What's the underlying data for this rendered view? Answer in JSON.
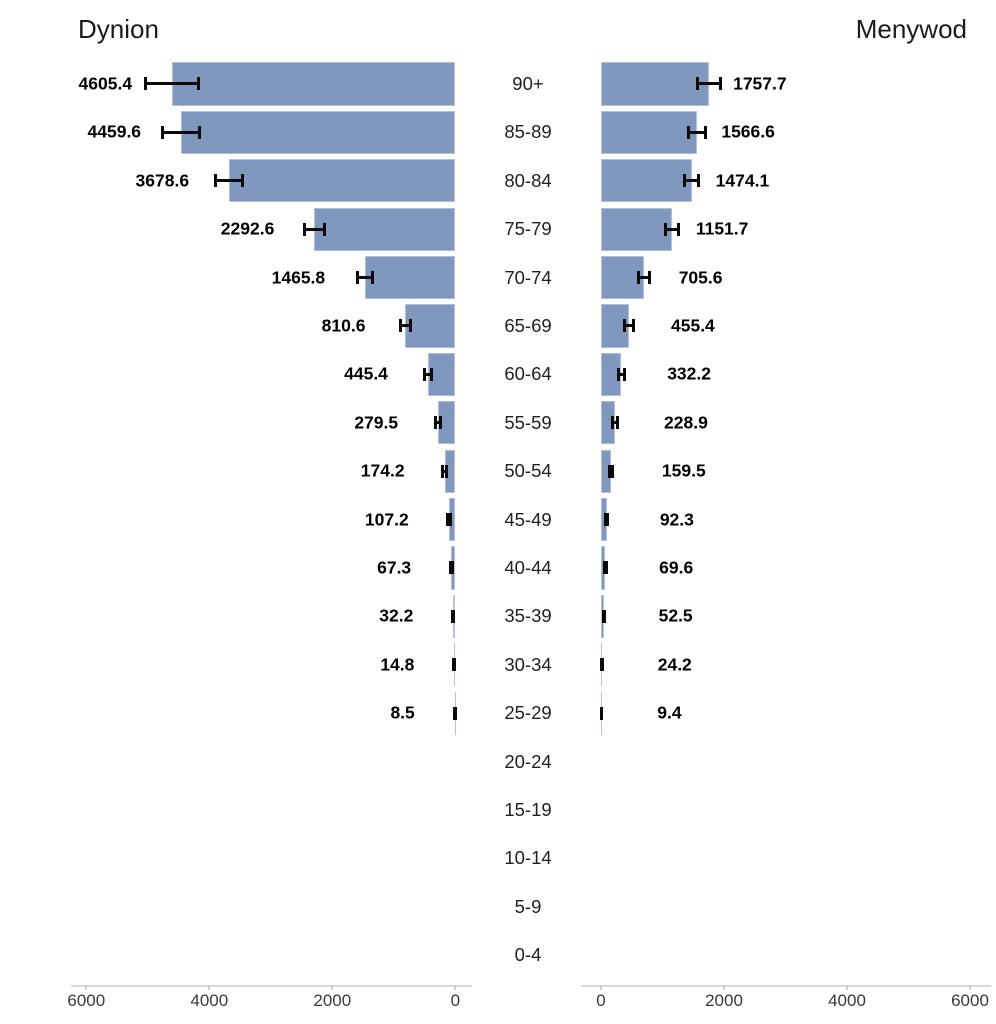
{
  "chart_data": {
    "type": "bar",
    "subtype": "population_pyramid_with_error_bars",
    "titles": {
      "left": "Dynion",
      "right": "Menywod"
    },
    "categories": [
      "90+",
      "85-89",
      "80-84",
      "75-79",
      "70-74",
      "65-69",
      "60-64",
      "55-59",
      "50-54",
      "45-49",
      "40-44",
      "35-39",
      "30-34",
      "25-29",
      "20-24",
      "15-19",
      "10-14",
      "5-9",
      "0-4"
    ],
    "series": [
      {
        "name": "Dynion",
        "side": "left",
        "values": [
          4605.4,
          4459.6,
          3678.6,
          2292.6,
          1465.8,
          810.6,
          445.4,
          279.5,
          174.2,
          107.2,
          67.3,
          32.2,
          14.8,
          8.5,
          null,
          null,
          null,
          null,
          null
        ],
        "error_margin_est": [
          430,
          300,
          215,
          160,
          122,
          85,
          55,
          40,
          30,
          22,
          16,
          11,
          7,
          5,
          null,
          null,
          null,
          null,
          null
        ]
      },
      {
        "name": "Menywod",
        "side": "right",
        "values": [
          1757.7,
          1566.6,
          1474.1,
          1151.7,
          705.6,
          455.4,
          332.2,
          228.9,
          159.5,
          92.3,
          69.6,
          52.5,
          24.2,
          9.4,
          null,
          null,
          null,
          null,
          null
        ],
        "error_margin_est": [
          190,
          140,
          110,
          106,
          90,
          70,
          45,
          35,
          27,
          20,
          15,
          12,
          8,
          5,
          null,
          null,
          null,
          null,
          null
        ]
      }
    ],
    "x_axis": {
      "left_ticks": [
        6000,
        4000,
        2000,
        0
      ],
      "right_ticks": [
        0,
        2000,
        4000,
        6000
      ],
      "range": [
        0,
        6000
      ],
      "grid": "off"
    },
    "legend": "none",
    "style": {
      "bar_color": "#8098be",
      "error_bar_color": "#0a0a0a",
      "axis_line_color": "#d9d9d9",
      "title_color": "#1b1b1b",
      "background": "#ffffff"
    }
  }
}
